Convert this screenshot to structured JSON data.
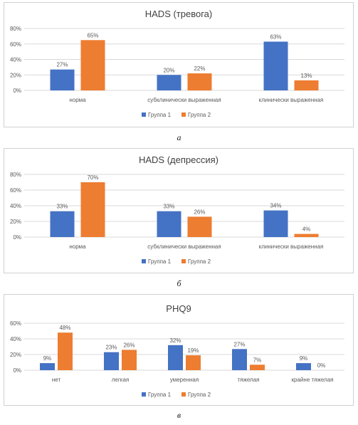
{
  "colors": {
    "group1": "#4472C4",
    "group2": "#ED7D31",
    "axis_text": "#595959",
    "grid": "#d9d9d9",
    "title": "#404040"
  },
  "chart_data": [
    {
      "type": "bar",
      "title": "HADS (тревога)",
      "categories": [
        "норма",
        "субклинически выраженная",
        "клинически выраженная"
      ],
      "series": [
        {
          "name": "Группа 1",
          "values": [
            27,
            20,
            63
          ],
          "labels": [
            "27%",
            "20%",
            "63%"
          ]
        },
        {
          "name": "Группа 2",
          "values": [
            65,
            22,
            13
          ],
          "labels": [
            "65%",
            "22%",
            "13%"
          ]
        }
      ],
      "yticks": [
        "0%",
        "20%",
        "40%",
        "60%",
        "80%"
      ],
      "ylim": [
        0,
        80
      ],
      "grid": true,
      "legend": "bottom",
      "caption": "а"
    },
    {
      "type": "bar",
      "title": "HADS (депрессия)",
      "categories": [
        "норма",
        "субклинически выраженная",
        "клинически выраженная"
      ],
      "series": [
        {
          "name": "Группа 1",
          "values": [
            33,
            33,
            34
          ],
          "labels": [
            "33%",
            "33%",
            "34%"
          ]
        },
        {
          "name": "Группа 2",
          "values": [
            70,
            26,
            4
          ],
          "labels": [
            "70%",
            "26%",
            "4%"
          ]
        }
      ],
      "yticks": [
        "0%",
        "20%",
        "40%",
        "60%",
        "80%"
      ],
      "ylim": [
        0,
        80
      ],
      "grid": true,
      "legend": "bottom",
      "caption": "б"
    },
    {
      "type": "bar",
      "title": "PHQ9",
      "categories": [
        "нет",
        "легкая",
        "умеренная",
        "тяжелая",
        "крайне тяжелая"
      ],
      "series": [
        {
          "name": "Группа 1",
          "values": [
            9,
            23,
            32,
            27,
            9
          ],
          "labels": [
            "9%",
            "23%",
            "32%",
            "27%",
            "9%"
          ]
        },
        {
          "name": "Группа 2",
          "values": [
            48,
            26,
            19,
            7,
            0
          ],
          "labels": [
            "48%",
            "26%",
            "19%",
            "7%",
            "0%"
          ]
        }
      ],
      "yticks": [
        "0%",
        "20%",
        "40%",
        "60%"
      ],
      "ylim": [
        0,
        60
      ],
      "grid": true,
      "legend": "bottom",
      "caption": "в"
    }
  ]
}
